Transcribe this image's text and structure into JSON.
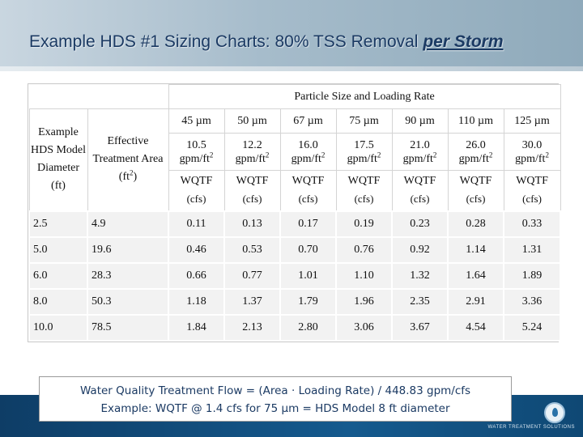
{
  "slide": {
    "title_prefix": "Example HDS #1 Sizing Charts: 80% TSS Removal ",
    "title_emphasis": "per Storm",
    "logo_caption": "WATER TREATMENT SOLUTIONS",
    "colors": {
      "title": "#1b3a63",
      "band": "#155a8e",
      "row_fill": "#f2f2f2"
    }
  },
  "table": {
    "group_header": "Particle Size and Loading Rate",
    "row_header_1": "Example HDS Model Diameter (ft)",
    "row_header_2_text": "Effective Treatment Area (ft",
    "row_header_2_sup": "2",
    "row_header_2_close": ")",
    "particle_sizes": [
      "45 µm",
      "50 µm",
      "67 µm",
      "75 µm",
      "90 µm",
      "110 µm",
      "125 µm"
    ],
    "loading_rates": [
      "10.5",
      "12.2",
      "16.0",
      "17.5",
      "21.0",
      "26.0",
      "30.0"
    ],
    "rate_unit": "gpm/ft",
    "rate_unit_sup": "2",
    "flow_label": "WQTF",
    "flow_unit": "(cfs)",
    "rows": [
      {
        "diameter": "2.5",
        "area": "4.9",
        "flows": [
          "0.11",
          "0.13",
          "0.17",
          "0.19",
          "0.23",
          "0.28",
          "0.33"
        ]
      },
      {
        "diameter": "5.0",
        "area": "19.6",
        "flows": [
          "0.46",
          "0.53",
          "0.70",
          "0.76",
          "0.92",
          "1.14",
          "1.31"
        ]
      },
      {
        "diameter": "6.0",
        "area": "28.3",
        "flows": [
          "0.66",
          "0.77",
          "1.01",
          "1.10",
          "1.32",
          "1.64",
          "1.89"
        ]
      },
      {
        "diameter": "8.0",
        "area": "50.3",
        "flows": [
          "1.18",
          "1.37",
          "1.79",
          "1.96",
          "2.35",
          "2.91",
          "3.36"
        ]
      },
      {
        "diameter": "10.0",
        "area": "78.5",
        "flows": [
          "1.84",
          "2.13",
          "2.80",
          "3.06",
          "3.67",
          "4.54",
          "5.24"
        ]
      }
    ]
  },
  "formula": {
    "line1": "Water Quality Treatment Flow = (Area · Loading Rate) / 448.83 gpm/cfs",
    "line2": "Example: WQTF @ 1.4 cfs for 75 µm = HDS Model 8 ft diameter"
  }
}
